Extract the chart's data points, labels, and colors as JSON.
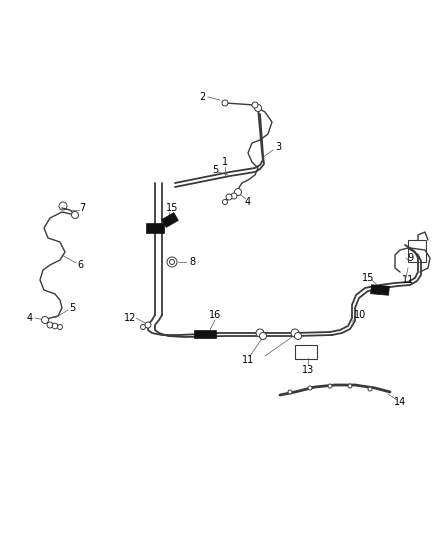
{
  "bg_color": "#ffffff",
  "line_color": "#3a3a3a",
  "label_color": "#000000",
  "fig_width": 4.38,
  "fig_height": 5.33,
  "dpi": 100,
  "hose_texture_color": "#888888",
  "clip_color": "#111111"
}
